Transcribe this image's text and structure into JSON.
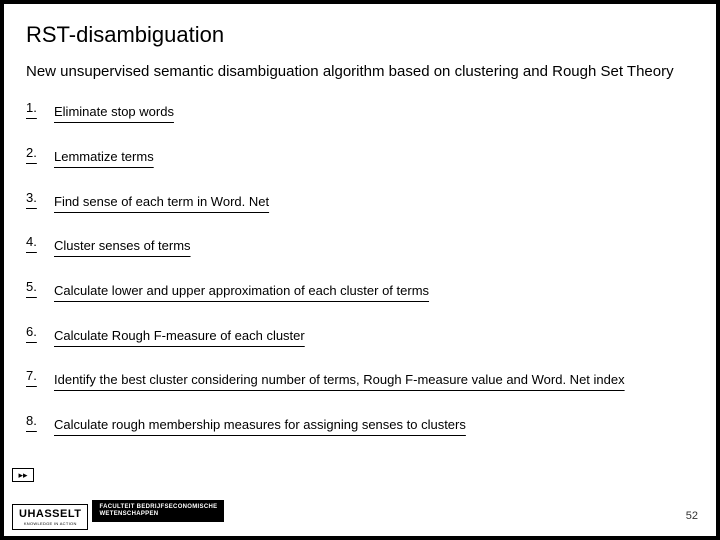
{
  "title": "RST-disambiguation",
  "subtitle": "New unsupervised semantic disambiguation algorithm based on clustering and Rough Set Theory",
  "steps": [
    {
      "num": "1.",
      "text": "Eliminate stop words"
    },
    {
      "num": "2.",
      "text": "Lemmatize terms"
    },
    {
      "num": "3.",
      "text": "Find sense of each term in Word. Net"
    },
    {
      "num": "4.",
      "text": "Cluster senses of terms"
    },
    {
      "num": "5.",
      "text": "Calculate lower and upper approximation of each cluster of terms"
    },
    {
      "num": "6.",
      "text": "Calculate Rough F-measure of each cluster"
    },
    {
      "num": "7.",
      "text": "Identify the best cluster considering number of terms, Rough F-measure value and Word. Net index"
    },
    {
      "num": "8.",
      "text": "Calculate rough membership measures for assigning senses to clusters"
    }
  ],
  "footer": {
    "arrows": "▸▸",
    "logo_main": "UHASSELT",
    "logo_sub": "KNOWLEDGE IN ACTION",
    "faculty_line1": "FACULTEIT BEDRIJFSECONOMISCHE",
    "faculty_line2": "WETENSCHAPPEN"
  },
  "page_number": "52"
}
